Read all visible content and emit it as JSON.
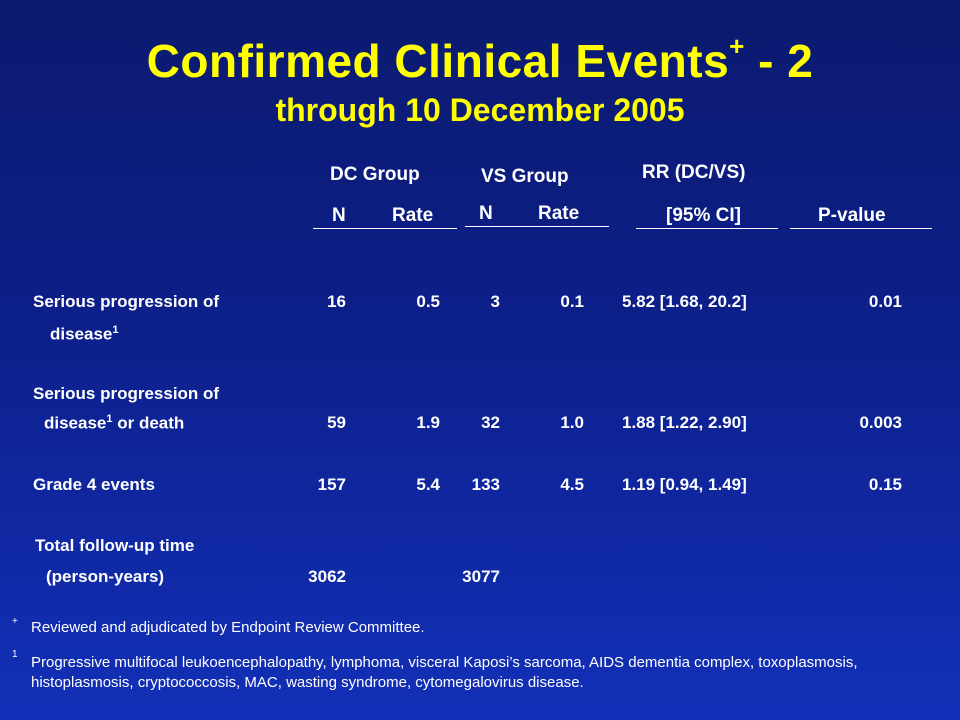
{
  "title": {
    "main": "Confirmed Clinical Events",
    "sup": "+",
    "suffix": " - 2"
  },
  "subtitle": "through 10 December 2005",
  "headers": {
    "dc_group": "DC Group",
    "vs_group": "VS Group",
    "rr": "RR (DC/VS)",
    "n": "N",
    "rate": "Rate",
    "ci": "[95% CI]",
    "pvalue": "P-value"
  },
  "rows": [
    {
      "label1": "Serious progression of",
      "label2": "disease",
      "label2_sup": "1",
      "label2_after": "",
      "dc_n": "16",
      "dc_rate": "0.5",
      "vs_n": "3",
      "vs_rate": "0.1",
      "rr": "5.82 [1.68, 20.2]",
      "p": "0.01"
    },
    {
      "label1": "Serious progression of",
      "label2": "disease",
      "label2_sup": "1",
      "label2_after": " or death",
      "dc_n": "59",
      "dc_rate": "1.9",
      "vs_n": "32",
      "vs_rate": "1.0",
      "rr": "1.88 [1.22, 2.90]",
      "p": "0.003"
    },
    {
      "label1": "Grade 4 events",
      "dc_n": "157",
      "dc_rate": "5.4",
      "vs_n": "133",
      "vs_rate": "4.5",
      "rr": "1.19 [0.94, 1.49]",
      "p": "0.15"
    },
    {
      "label1": "Total follow-up time",
      "label2": "(person-years)",
      "dc_n": "3062",
      "vs_n": "3077"
    }
  ],
  "footnotes": [
    {
      "mark": "+",
      "text": "Reviewed and adjudicated by Endpoint Review Committee."
    },
    {
      "mark": "1",
      "text": "Progressive multifocal leukoencephalopathy, lymphoma, visceral Kaposi’s sarcoma, AIDS dementia complex, toxoplasmosis, histoplasmosis, cryptococcosis, MAC, wasting syndrome, cytomegalovirus disease."
    }
  ],
  "colors": {
    "title": "#ffff00",
    "text": "#ffffff",
    "background": "#0d1f8a"
  }
}
